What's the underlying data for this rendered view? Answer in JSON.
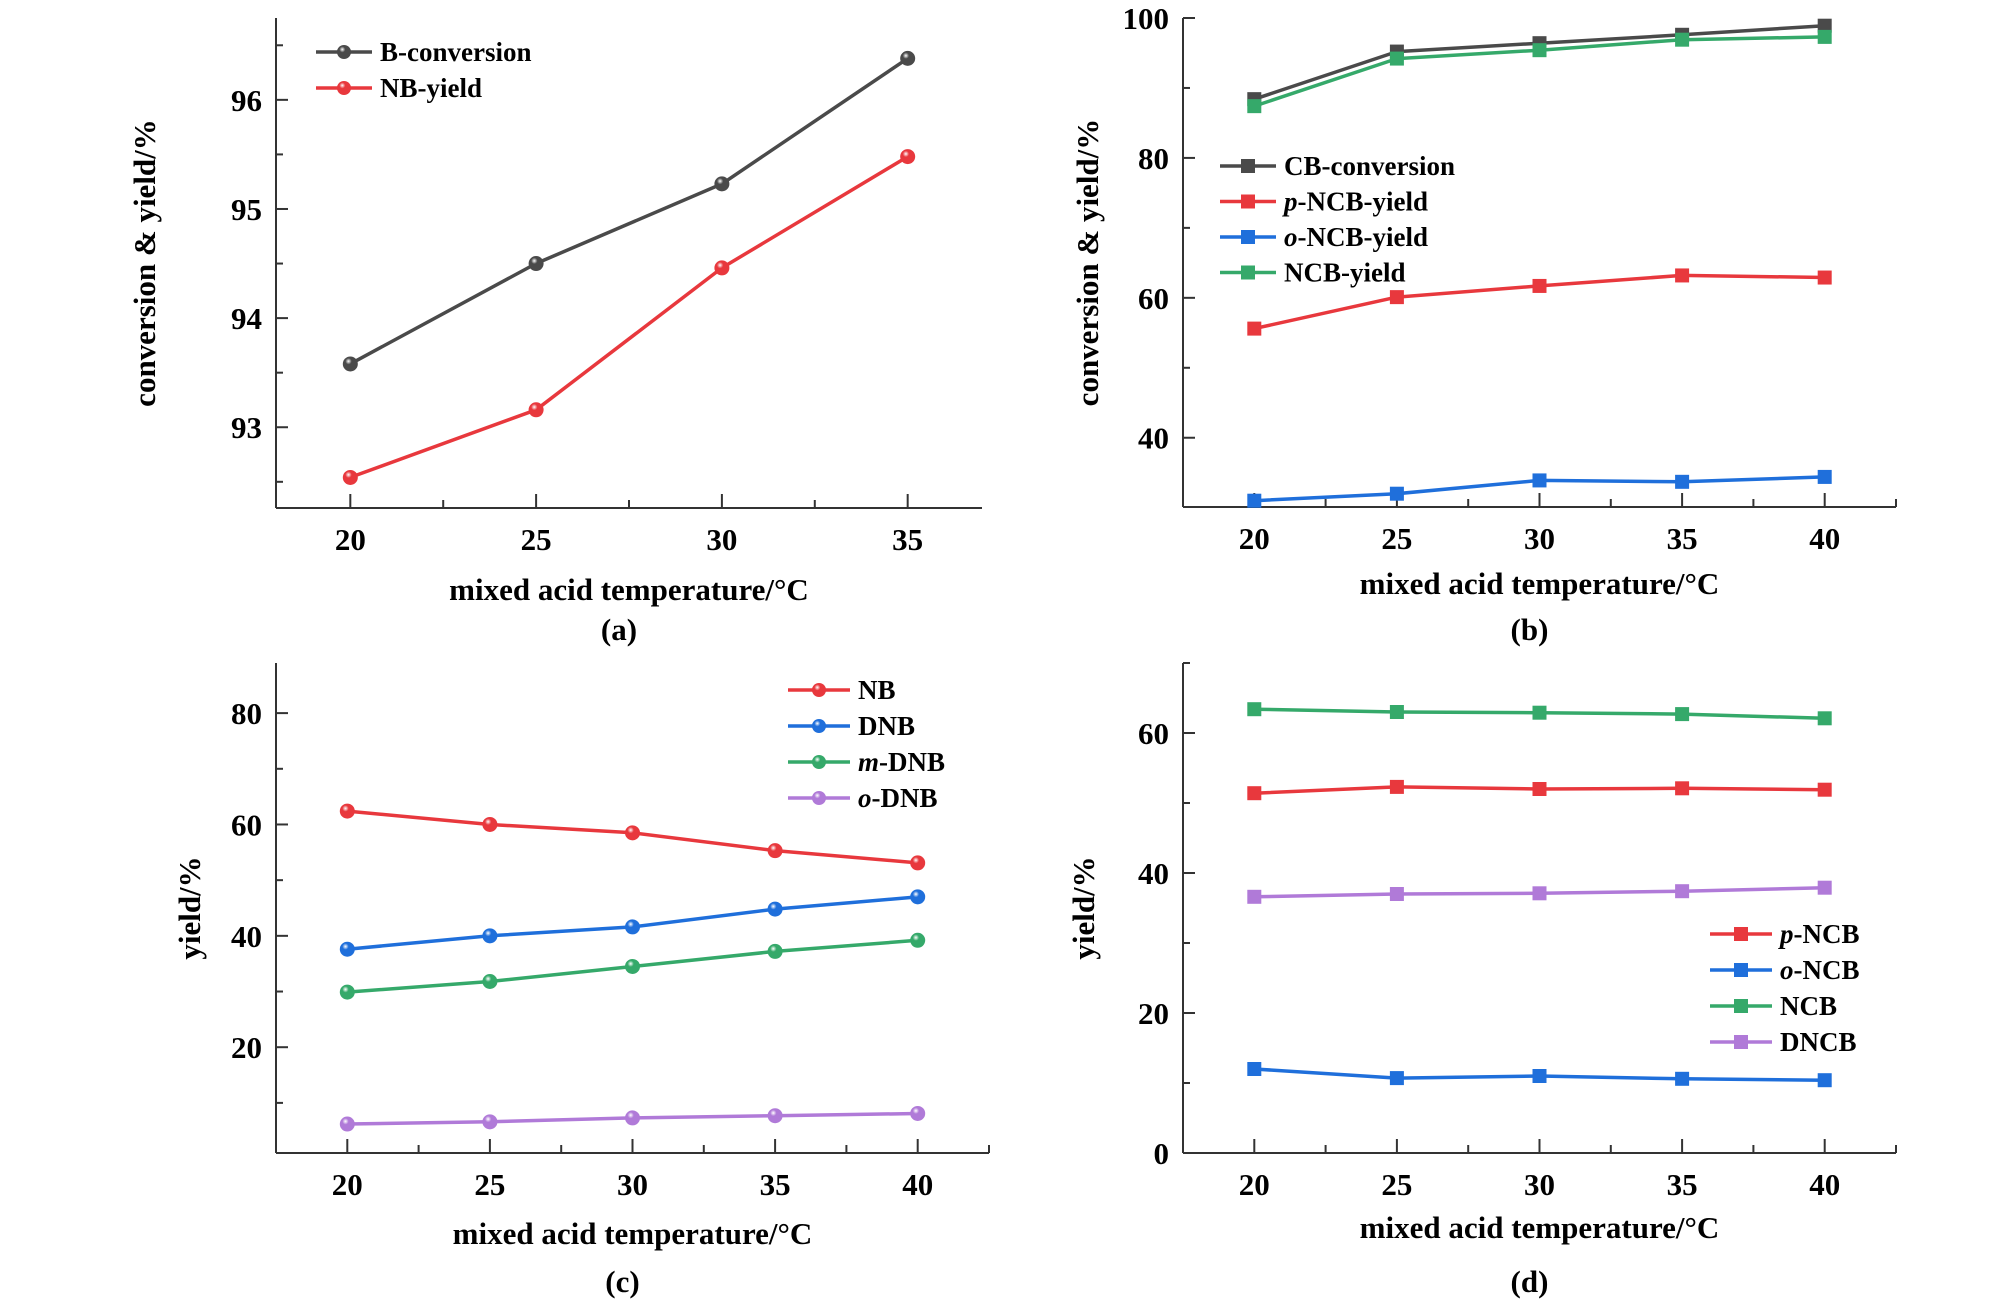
{
  "figure": {
    "panels_count": 4
  },
  "chart_data": [
    {
      "id": "a",
      "type": "line",
      "panel_label": "(a)",
      "title": "",
      "xlabel": "mixed acid temperature/°C",
      "ylabel": "conversion & yield/%",
      "x": [
        20,
        25,
        30,
        35
      ],
      "xticks": [
        20,
        25,
        30,
        35
      ],
      "xlim": [
        18,
        37
      ],
      "yticks": [
        93,
        94,
        95,
        96
      ],
      "ylim": [
        92.26,
        96.75
      ],
      "y_minor_step": 0.5,
      "x_minor_step": 2.5,
      "marker": "sphere",
      "legend_position": "top-left",
      "series": [
        {
          "name": "B-conversion",
          "name_italic_prefix": "",
          "name_rest": "B-conversion",
          "color": "#4a4a4a",
          "values": [
            93.58,
            94.5,
            95.23,
            96.38
          ]
        },
        {
          "name": "NB-yield",
          "name_italic_prefix": "",
          "name_rest": "NB-yield",
          "color": "#e8383d",
          "values": [
            92.54,
            93.16,
            94.46,
            95.48
          ]
        }
      ]
    },
    {
      "id": "b",
      "type": "line",
      "panel_label": "(b)",
      "title": "",
      "xlabel": "mixed acid temperature/°C",
      "ylabel": "conversion & yield/%",
      "x": [
        20,
        25,
        30,
        35,
        40
      ],
      "xticks": [
        20,
        25,
        30,
        35,
        40
      ],
      "xlim": [
        17.5,
        42.5
      ],
      "yticks": [
        40,
        60,
        80,
        100
      ],
      "ylim": [
        30.1,
        100
      ],
      "y_minor_step": 10,
      "x_minor_step": 2.5,
      "marker": "square",
      "legend_position": "center-left",
      "series": [
        {
          "name": "CB-conversion",
          "name_italic_prefix": "",
          "name_rest": "CB-conversion",
          "color": "#4a4a4a",
          "values": [
            88.4,
            95.2,
            96.4,
            97.6,
            98.9
          ]
        },
        {
          "name": "p-NCB-yield",
          "name_italic_prefix": "p",
          "name_rest": "-NCB-yield",
          "color": "#e8383d",
          "values": [
            55.6,
            60.1,
            61.7,
            63.2,
            62.9
          ]
        },
        {
          "name": "o-NCB-yield",
          "name_italic_prefix": "o",
          "name_rest": "-NCB-yield",
          "color": "#1f6fdb",
          "values": [
            31.0,
            32.0,
            33.9,
            33.7,
            34.4
          ]
        },
        {
          "name": "NCB-yield",
          "name_italic_prefix": "",
          "name_rest": "NCB-yield",
          "color": "#35a96a",
          "values": [
            87.4,
            94.2,
            95.4,
            96.9,
            97.3
          ]
        }
      ]
    },
    {
      "id": "c",
      "type": "line",
      "panel_label": "(c)",
      "title": "",
      "xlabel": "mixed acid temperature/°C",
      "ylabel": "yield/%",
      "x": [
        20,
        25,
        30,
        35,
        40
      ],
      "xticks": [
        20,
        25,
        30,
        35,
        40
      ],
      "xlim": [
        17.5,
        42.5
      ],
      "yticks": [
        20,
        40,
        60,
        80
      ],
      "ylim": [
        1.0,
        89
      ],
      "y_minor_step": 10,
      "x_minor_step": 2.5,
      "marker": "sphere",
      "legend_position": "top-right",
      "series": [
        {
          "name": "NB",
          "name_italic_prefix": "",
          "name_rest": "NB",
          "color": "#e8383d",
          "values": [
            62.4,
            60.0,
            58.5,
            55.3,
            53.1
          ]
        },
        {
          "name": "DNB",
          "name_italic_prefix": "",
          "name_rest": "DNB",
          "color": "#1f6fdb",
          "values": [
            37.6,
            40.0,
            41.6,
            44.8,
            47.0
          ]
        },
        {
          "name": "m-DNB",
          "name_italic_prefix": "m",
          "name_rest": "-DNB",
          "color": "#35a96a",
          "values": [
            29.9,
            31.8,
            34.5,
            37.2,
            39.2
          ]
        },
        {
          "name": "o-DNB",
          "name_italic_prefix": "o",
          "name_rest": "-DNB",
          "color": "#b07ad8",
          "values": [
            6.2,
            6.6,
            7.3,
            7.7,
            8.1
          ]
        }
      ]
    },
    {
      "id": "d",
      "type": "line",
      "panel_label": "(d)",
      "title": "",
      "xlabel": "mixed acid temperature/°C",
      "ylabel": "yield/%",
      "x": [
        20,
        25,
        30,
        35,
        40
      ],
      "xticks": [
        20,
        25,
        30,
        35,
        40
      ],
      "xlim": [
        17.5,
        42.5
      ],
      "yticks": [
        0,
        20,
        40,
        60
      ],
      "ylim": [
        0,
        70
      ],
      "y_minor_step": 10,
      "x_minor_step": 2.5,
      "marker": "square",
      "legend_position": "center-right",
      "series": [
        {
          "name": "p-NCB",
          "name_italic_prefix": "p",
          "name_rest": "-NCB",
          "color": "#e8383d",
          "values": [
            51.4,
            52.3,
            52.0,
            52.1,
            51.9
          ]
        },
        {
          "name": "o-NCB",
          "name_italic_prefix": "o",
          "name_rest": "-NCB",
          "color": "#1f6fdb",
          "values": [
            12.0,
            10.7,
            11.0,
            10.6,
            10.4
          ]
        },
        {
          "name": "NCB",
          "name_italic_prefix": "",
          "name_rest": "NCB",
          "color": "#35a96a",
          "values": [
            63.4,
            63.0,
            62.9,
            62.7,
            62.1
          ]
        },
        {
          "name": "DNCB",
          "name_italic_prefix": "",
          "name_rest": "DNCB",
          "color": "#b07ad8",
          "values": [
            36.6,
            37.0,
            37.1,
            37.4,
            37.9
          ]
        }
      ]
    }
  ]
}
